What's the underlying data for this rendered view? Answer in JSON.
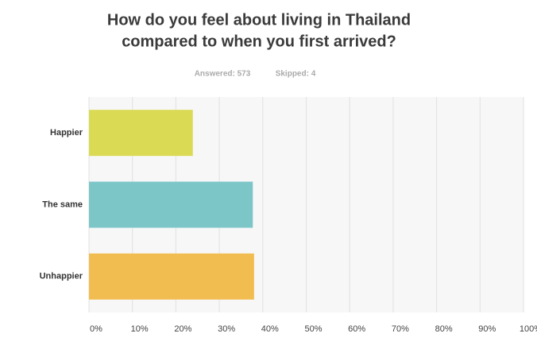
{
  "chart_data": {
    "type": "bar",
    "orientation": "horizontal",
    "title": [
      "How do you feel about living in Thailand",
      "compared to when you first arrived?"
    ],
    "answered": "Answered: 573",
    "skipped": "Skipped: 4",
    "categories": [
      "Happier",
      "The same",
      "Unhappier"
    ],
    "values": [
      23.9,
      37.7,
      38.0
    ],
    "colors": [
      "#dada55",
      "#7cc6c8",
      "#f2bd50"
    ],
    "xlim": [
      0,
      100
    ],
    "xticks": [
      {
        "value": 0,
        "label": "0%"
      },
      {
        "value": 10,
        "label": "10%"
      },
      {
        "value": 20,
        "label": "20%"
      },
      {
        "value": 30,
        "label": "30%"
      },
      {
        "value": 40,
        "label": "40%"
      },
      {
        "value": 50,
        "label": "50%"
      },
      {
        "value": 60,
        "label": "60%"
      },
      {
        "value": 70,
        "label": "70%"
      },
      {
        "value": 80,
        "label": "80%"
      },
      {
        "value": 90,
        "label": "90%"
      },
      {
        "value": 100,
        "label": "100%"
      }
    ],
    "grid": true
  }
}
